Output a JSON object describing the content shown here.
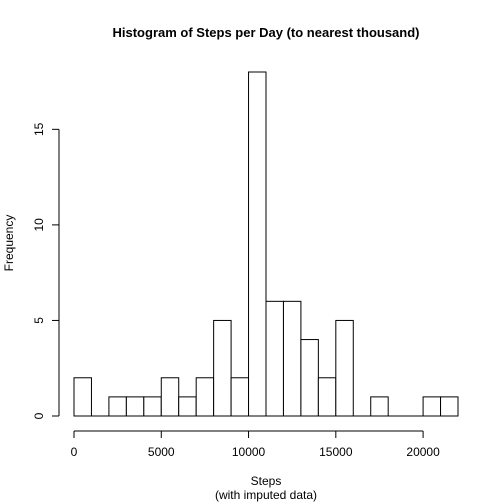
{
  "chart_data": {
    "type": "bar",
    "title": "Histogram of Steps per Day (to nearest thousand)",
    "xlabel": "Steps",
    "xlabel_sub": "(with imputed data)",
    "ylabel": "Frequency",
    "bin_width": 1000,
    "bins": [
      {
        "start": 0,
        "end": 1000,
        "count": 2
      },
      {
        "start": 1000,
        "end": 2000,
        "count": 0
      },
      {
        "start": 2000,
        "end": 3000,
        "count": 1
      },
      {
        "start": 3000,
        "end": 4000,
        "count": 1
      },
      {
        "start": 4000,
        "end": 5000,
        "count": 1
      },
      {
        "start": 5000,
        "end": 6000,
        "count": 2
      },
      {
        "start": 6000,
        "end": 7000,
        "count": 1
      },
      {
        "start": 7000,
        "end": 8000,
        "count": 2
      },
      {
        "start": 8000,
        "end": 9000,
        "count": 5
      },
      {
        "start": 9000,
        "end": 10000,
        "count": 2
      },
      {
        "start": 10000,
        "end": 11000,
        "count": 18
      },
      {
        "start": 11000,
        "end": 12000,
        "count": 6
      },
      {
        "start": 12000,
        "end": 13000,
        "count": 6
      },
      {
        "start": 13000,
        "end": 14000,
        "count": 4
      },
      {
        "start": 14000,
        "end": 15000,
        "count": 2
      },
      {
        "start": 15000,
        "end": 16000,
        "count": 5
      },
      {
        "start": 16000,
        "end": 17000,
        "count": 0
      },
      {
        "start": 17000,
        "end": 18000,
        "count": 1
      },
      {
        "start": 18000,
        "end": 19000,
        "count": 0
      },
      {
        "start": 19000,
        "end": 20000,
        "count": 0
      },
      {
        "start": 20000,
        "end": 21000,
        "count": 1
      },
      {
        "start": 21000,
        "end": 22000,
        "count": 1
      }
    ],
    "xlim": [
      0,
      22000
    ],
    "ylim": [
      0,
      18
    ],
    "x_ticks": [
      0,
      5000,
      10000,
      15000,
      20000
    ],
    "x_tick_labels": [
      "0",
      "5000",
      "10000",
      "15000",
      "20000"
    ],
    "y_ticks": [
      0,
      5,
      10,
      15
    ],
    "y_tick_labels": [
      "0",
      "5",
      "10",
      "15"
    ],
    "grid": false,
    "bar_fill": "#ffffff",
    "bar_stroke": "#000000"
  }
}
